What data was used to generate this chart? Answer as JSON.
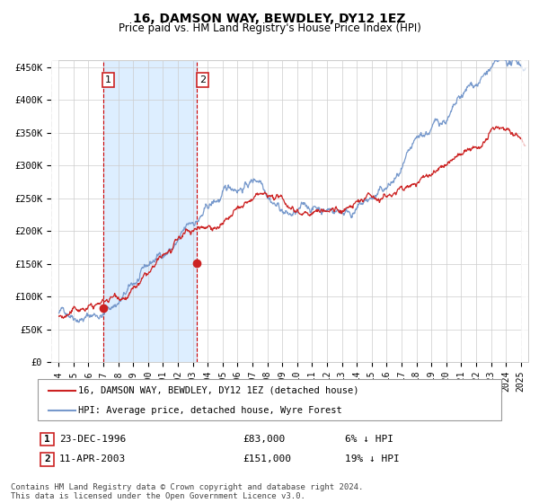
{
  "title": "16, DAMSON WAY, BEWDLEY, DY12 1EZ",
  "subtitle": "Price paid vs. HM Land Registry's House Price Index (HPI)",
  "title_fontsize": 10,
  "subtitle_fontsize": 8.5,
  "ylim": [
    0,
    460000
  ],
  "yticks": [
    0,
    50000,
    100000,
    150000,
    200000,
    250000,
    300000,
    350000,
    400000,
    450000
  ],
  "ytick_labels": [
    "£0",
    "£50K",
    "£100K",
    "£150K",
    "£200K",
    "£250K",
    "£300K",
    "£350K",
    "£400K",
    "£450K"
  ],
  "xlim_start": 1993.5,
  "xlim_end": 2025.5,
  "xtick_years": [
    1994,
    1995,
    1996,
    1997,
    1998,
    1999,
    2000,
    2001,
    2002,
    2003,
    2004,
    2005,
    2006,
    2007,
    2008,
    2009,
    2010,
    2011,
    2012,
    2013,
    2014,
    2015,
    2016,
    2017,
    2018,
    2019,
    2020,
    2021,
    2022,
    2023,
    2024,
    2025
  ],
  "hpi_color": "#7799cc",
  "price_color": "#cc2222",
  "dot_color": "#cc2222",
  "vline_color": "#cc0000",
  "shade_color": "#ddeeff",
  "grid_color": "#cccccc",
  "bg_color": "#ffffff",
  "purchase1_x": 1996.98,
  "purchase1_y": 83000,
  "purchase2_x": 2003.28,
  "purchase2_y": 151000,
  "sale1_label": "1",
  "sale1_date": "23-DEC-1996",
  "sale1_price": "£83,000",
  "sale1_hpi": "6% ↓ HPI",
  "sale2_label": "2",
  "sale2_date": "11-APR-2003",
  "sale2_price": "£151,000",
  "sale2_hpi": "19% ↓ HPI",
  "legend_line1": "16, DAMSON WAY, BEWDLEY, DY12 1EZ (detached house)",
  "legend_line2": "HPI: Average price, detached house, Wyre Forest",
  "footer": "Contains HM Land Registry data © Crown copyright and database right 2024.\nThis data is licensed under the Open Government Licence v3.0."
}
